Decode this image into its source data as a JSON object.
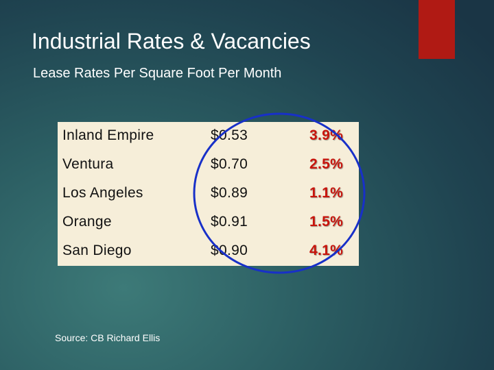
{
  "header": {
    "title": "Industrial Rates & Vacancies",
    "subtitle": "Lease Rates Per Square Foot Per Month"
  },
  "table": {
    "rows": [
      [
        "Inland Empire",
        "$0.53",
        "3.9%"
      ],
      [
        "Ventura",
        "$0.70",
        "2.5%"
      ],
      [
        "Los Angeles",
        "$0.89",
        "1.1%"
      ],
      [
        "Orange",
        "$0.91",
        "1.5%"
      ],
      [
        "San Diego",
        "$0.90",
        "4.1%"
      ]
    ]
  },
  "footer": {
    "source": "Source:  CB Richard Ellis"
  }
}
